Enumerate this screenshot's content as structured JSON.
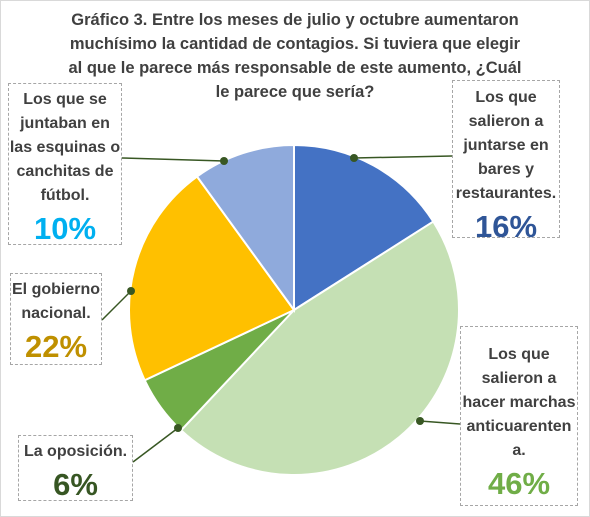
{
  "title_lines": [
    "Gráfico 3. Entre los meses de julio y octubre aumentaron",
    "muchísimo  la cantidad de contagios. Si tuviera que elegir",
    "al que le parece más responsable de este aumento, ¿Cuál",
    "le parece que sería?"
  ],
  "chart_data": {
    "type": "pie",
    "title": "Gráfico 3. Entre los meses de julio y octubre aumentaron muchísimo  la cantidad de contagios. Si tuviera que elegir al que le parece más responsable de este aumento, ¿Cuál le parece que sería?",
    "slices": [
      {
        "key": "bares",
        "label_lines": [
          "Los que",
          "salieron a",
          "juntarse en",
          "bares y",
          "restaurantes."
        ],
        "value": 16,
        "percent_label": "16%",
        "color": "#4472c4",
        "pct_color": "#2f5597"
      },
      {
        "key": "marchas",
        "label_lines": [
          "Los que",
          "salieron a",
          "hacer marchas",
          "anticuarenten",
          "a."
        ],
        "value": 46,
        "percent_label": "46%",
        "color": "#c5e0b4",
        "pct_color": "#70ad47"
      },
      {
        "key": "oposicion",
        "label_lines": [
          "La oposición."
        ],
        "value": 6,
        "percent_label": "6%",
        "color": "#70ad47",
        "pct_color": "#375623"
      },
      {
        "key": "gobierno",
        "label_lines": [
          "El gobierno",
          "nacional."
        ],
        "value": 22,
        "percent_label": "22%",
        "color": "#ffc000",
        "pct_color": "#bf9000"
      },
      {
        "key": "esquinas",
        "label_lines": [
          "Los que se",
          "juntaban en",
          "las esquinas o",
          "canchitas de",
          "fútbol."
        ],
        "value": 10,
        "percent_label": "10%",
        "color": "#8faadc",
        "pct_color": "#00b0f0"
      }
    ],
    "start_angle_deg": 0,
    "direction": "clockwise",
    "legend": "none"
  }
}
